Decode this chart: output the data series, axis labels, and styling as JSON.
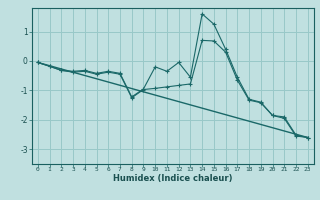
{
  "xlabel": "Humidex (Indice chaleur)",
  "xlim": [
    -0.5,
    23.5
  ],
  "ylim": [
    -3.5,
    1.8
  ],
  "background_color": "#c0e0e0",
  "grid_color": "#98c8c8",
  "line_color": "#1a6868",
  "series1": {
    "x": [
      0,
      1,
      2,
      3,
      4,
      5,
      6,
      7,
      8,
      9,
      10,
      11,
      12,
      13,
      14,
      15,
      16,
      17,
      18,
      19,
      20,
      21,
      22,
      23
    ],
    "y": [
      -0.05,
      -0.18,
      -0.32,
      -0.35,
      -0.32,
      -0.42,
      -0.35,
      -0.42,
      -1.22,
      -0.95,
      -0.2,
      -0.35,
      -0.05,
      -0.55,
      1.6,
      1.25,
      0.4,
      -0.55,
      -1.3,
      -1.4,
      -1.85,
      -1.95,
      -2.55,
      -2.6
    ]
  },
  "series2": {
    "x": [
      0,
      1,
      2,
      3,
      4,
      5,
      6,
      7,
      8,
      9,
      10,
      11,
      12,
      13,
      14,
      15,
      16,
      17,
      18,
      19,
      20,
      21,
      22,
      23
    ],
    "y": [
      -0.05,
      -0.18,
      -0.32,
      -0.38,
      -0.35,
      -0.45,
      -0.38,
      -0.45,
      -1.25,
      -0.97,
      -0.93,
      -0.88,
      -0.83,
      -0.78,
      0.7,
      0.68,
      0.3,
      -0.65,
      -1.33,
      -1.42,
      -1.85,
      -1.9,
      -2.52,
      -2.6
    ]
  },
  "series3": {
    "x": [
      0,
      23
    ],
    "y": [
      -0.05,
      -2.6
    ]
  },
  "yticks": [
    1,
    0,
    -1,
    -2,
    -3
  ],
  "xticks": [
    0,
    1,
    2,
    3,
    4,
    5,
    6,
    7,
    8,
    9,
    10,
    11,
    12,
    13,
    14,
    15,
    16,
    17,
    18,
    19,
    20,
    21,
    22,
    23
  ]
}
